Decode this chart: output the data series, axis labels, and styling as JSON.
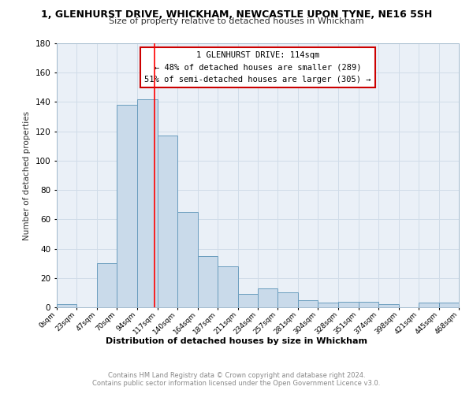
{
  "title": "1, GLENHURST DRIVE, WHICKHAM, NEWCASTLE UPON TYNE, NE16 5SH",
  "subtitle": "Size of property relative to detached houses in Whickham",
  "xlabel": "Distribution of detached houses by size in Whickham",
  "ylabel": "Number of detached properties",
  "bar_values": [
    2,
    0,
    30,
    138,
    142,
    117,
    65,
    35,
    28,
    9,
    13,
    10,
    5,
    3,
    4,
    4,
    2,
    0,
    3,
    3
  ],
  "bar_labels": [
    "0sqm",
    "23sqm",
    "47sqm",
    "70sqm",
    "94sqm",
    "117sqm",
    "140sqm",
    "164sqm",
    "187sqm",
    "211sqm",
    "234sqm",
    "257sqm",
    "281sqm",
    "304sqm",
    "328sqm",
    "351sqm",
    "374sqm",
    "398sqm",
    "421sqm",
    "445sqm",
    "468sqm"
  ],
  "bar_edges": [
    0,
    23,
    47,
    70,
    94,
    117,
    140,
    164,
    187,
    211,
    234,
    257,
    281,
    304,
    328,
    351,
    374,
    398,
    421,
    445,
    468
  ],
  "bar_color": "#c9daea",
  "bar_edge_color": "#6a9dbe",
  "red_line_x": 114,
  "ylim": [
    0,
    180
  ],
  "yticks": [
    0,
    20,
    40,
    60,
    80,
    100,
    120,
    140,
    160,
    180
  ],
  "annotation_lines": [
    "1 GLENHURST DRIVE: 114sqm",
    "← 48% of detached houses are smaller (289)",
    "51% of semi-detached houses are larger (305) →"
  ],
  "annotation_box_color": "#ffffff",
  "annotation_box_edge_color": "#cc0000",
  "grid_color": "#d0dce8",
  "bg_color": "#eaf0f7",
  "fig_bg_color": "#ffffff",
  "footer_line1": "Contains HM Land Registry data © Crown copyright and database right 2024.",
  "footer_line2": "Contains public sector information licensed under the Open Government Licence v3.0."
}
